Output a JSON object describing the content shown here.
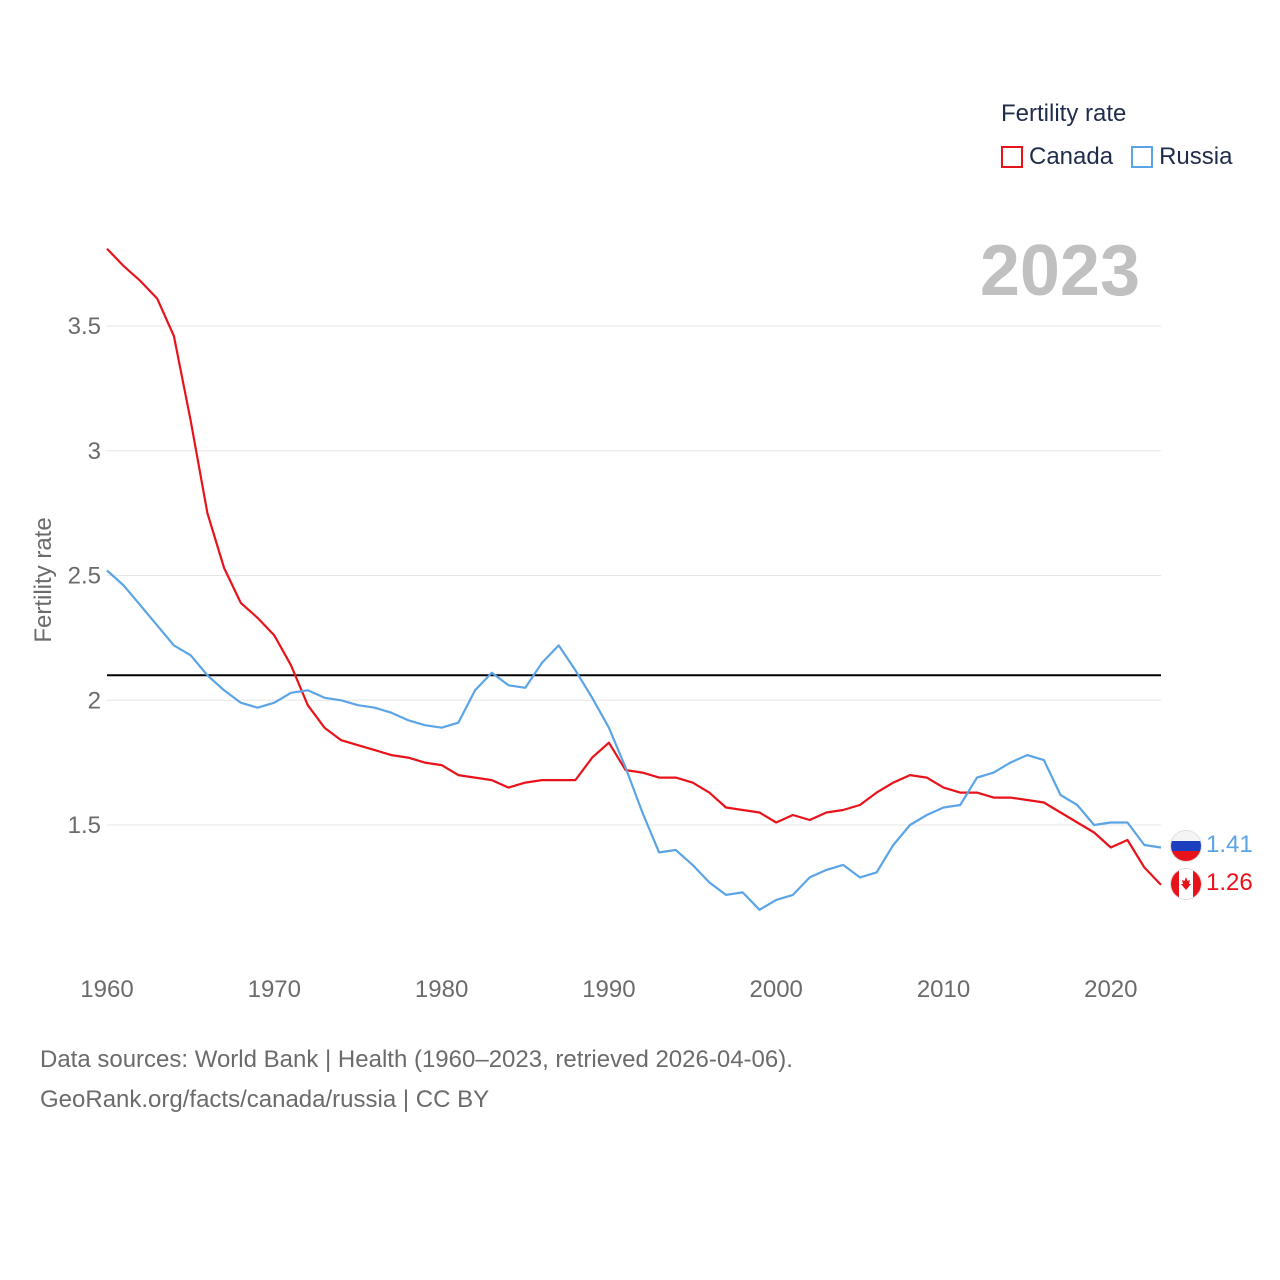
{
  "legend": {
    "title": "Fertility rate",
    "items": [
      {
        "label": "Canada",
        "color": "#e8131a"
      },
      {
        "label": "Russia",
        "color": "#5ba4e5"
      }
    ]
  },
  "year_label": "2023",
  "footer": {
    "line1": "Data sources: World Bank | Health (1960–2023, retrieved 2026-04-06).",
    "line2": "GeoRank.org/facts/canada/russia | CC BY"
  },
  "end_labels": {
    "russia": "1.41",
    "canada": "1.26"
  },
  "chart_data": {
    "type": "line",
    "title": "",
    "xlabel": "",
    "ylabel": "Fertility rate",
    "xlim": [
      1960,
      2023
    ],
    "ylim": [
      1.0,
      3.9
    ],
    "x_ticks": [
      1960,
      1970,
      1980,
      1990,
      2000,
      2010,
      2020
    ],
    "x_tick_labels": [
      "1960",
      "1970",
      "1980",
      "1990",
      "2000",
      "2010",
      "2020"
    ],
    "y_ticks": [
      1.5,
      2,
      2.5,
      3,
      3.5
    ],
    "y_tick_labels": [
      "1.5",
      "2",
      "2.5",
      "3",
      "3.5"
    ],
    "reference_line": {
      "y": 2.1,
      "color": "#000000"
    },
    "x": [
      1960,
      1961,
      1962,
      1963,
      1964,
      1965,
      1966,
      1967,
      1968,
      1969,
      1970,
      1971,
      1972,
      1973,
      1974,
      1975,
      1976,
      1977,
      1978,
      1979,
      1980,
      1981,
      1982,
      1983,
      1984,
      1985,
      1986,
      1987,
      1988,
      1989,
      1990,
      1991,
      1992,
      1993,
      1994,
      1995,
      1996,
      1997,
      1998,
      1999,
      2000,
      2001,
      2002,
      2003,
      2004,
      2005,
      2006,
      2007,
      2008,
      2009,
      2010,
      2011,
      2012,
      2013,
      2014,
      2015,
      2016,
      2017,
      2018,
      2019,
      2020,
      2021,
      2022,
      2023
    ],
    "series": [
      {
        "name": "Canada",
        "color": "#e8131a",
        "values": [
          3.81,
          3.74,
          3.68,
          3.61,
          3.46,
          3.12,
          2.75,
          2.53,
          2.39,
          2.33,
          2.26,
          2.14,
          1.98,
          1.89,
          1.84,
          1.82,
          1.8,
          1.78,
          1.77,
          1.75,
          1.74,
          1.7,
          1.69,
          1.68,
          1.65,
          1.67,
          1.68,
          1.68,
          1.68,
          1.77,
          1.83,
          1.72,
          1.71,
          1.69,
          1.69,
          1.67,
          1.63,
          1.57,
          1.56,
          1.55,
          1.51,
          1.54,
          1.52,
          1.55,
          1.56,
          1.58,
          1.63,
          1.67,
          1.7,
          1.69,
          1.65,
          1.63,
          1.63,
          1.61,
          1.61,
          1.6,
          1.59,
          1.55,
          1.51,
          1.47,
          1.41,
          1.44,
          1.33,
          1.26
        ]
      },
      {
        "name": "Russia",
        "color": "#5ba4e5",
        "values": [
          2.52,
          2.46,
          2.38,
          2.3,
          2.22,
          2.18,
          2.1,
          2.04,
          1.99,
          1.97,
          1.99,
          2.03,
          2.04,
          2.01,
          2.0,
          1.98,
          1.97,
          1.95,
          1.92,
          1.9,
          1.89,
          1.91,
          2.04,
          2.11,
          2.06,
          2.05,
          2.15,
          2.22,
          2.12,
          2.01,
          1.89,
          1.73,
          1.55,
          1.39,
          1.4,
          1.34,
          1.27,
          1.22,
          1.23,
          1.16,
          1.2,
          1.22,
          1.29,
          1.32,
          1.34,
          1.29,
          1.31,
          1.42,
          1.5,
          1.54,
          1.57,
          1.58,
          1.69,
          1.71,
          1.75,
          1.78,
          1.76,
          1.62,
          1.58,
          1.5,
          1.51,
          1.51,
          1.42,
          1.41
        ]
      }
    ]
  }
}
